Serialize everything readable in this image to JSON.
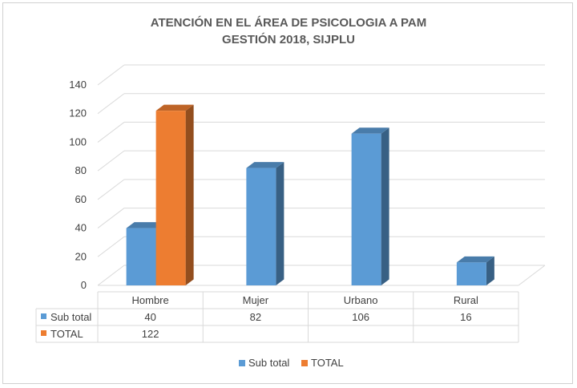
{
  "chart_data": {
    "type": "bar",
    "title": "ATENCIÓN EN EL ÁREA DE PSICOLOGIA A PAM",
    "subtitle": "GESTIÓN 2018, SIJPLU",
    "categories": [
      "Hombre",
      "Mujer",
      "Urbano",
      "Rural"
    ],
    "series": [
      {
        "name": "Sub total",
        "values": [
          40,
          82,
          106,
          16
        ],
        "color": "#5B9BD5"
      },
      {
        "name": "TOTAL",
        "values": [
          122,
          null,
          null,
          null
        ],
        "color": "#ED7D31"
      }
    ],
    "table_cells": [
      [
        "40",
        "82",
        "106",
        "16"
      ],
      [
        "122",
        "",
        "",
        ""
      ]
    ],
    "ylim": [
      0,
      140
    ],
    "yticks": [
      0,
      20,
      40,
      60,
      80,
      100,
      120,
      140
    ],
    "ytick_labels": [
      "0",
      "20",
      "40",
      "60",
      "80",
      "100",
      "120",
      "140"
    ],
    "grid": true,
    "legend_position": "bottom",
    "data_table": true
  }
}
